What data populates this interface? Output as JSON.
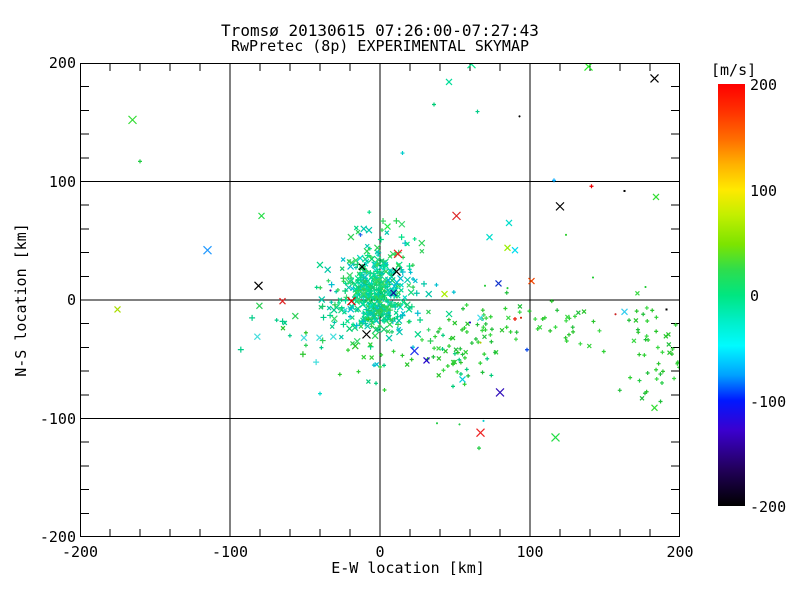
{
  "chart_data": {
    "type": "scatter",
    "title": "Tromsø 20130615 07:26:00-07:27:43",
    "subtitle": "RwPretec (8p) EXPERIMENTAL SKYMAP",
    "xlabel": "E-W location [km]",
    "ylabel": "N-S location [km]",
    "xlim": [
      -200,
      200
    ],
    "ylim": [
      -200,
      200
    ],
    "xticks": [
      -200,
      -100,
      0,
      100,
      200
    ],
    "yticks": [
      -200,
      -100,
      0,
      100,
      200
    ],
    "minor_tick_km": 20,
    "grid_km": 100,
    "grid_on": true,
    "axis_color": "#000000",
    "background_color": "#ffffff",
    "colorbar": {
      "label": "[m/s]",
      "max": 200,
      "min": -200,
      "ticks": [
        200,
        100,
        0,
        -100,
        -200
      ],
      "position": "right",
      "gradient": [
        {
          "pos": 0.0,
          "color": "#ff0000"
        },
        {
          "pos": 0.06,
          "color": "#ff2d00"
        },
        {
          "pos": 0.13,
          "color": "#ff6d00"
        },
        {
          "pos": 0.19,
          "color": "#ffb100"
        },
        {
          "pos": 0.25,
          "color": "#ffe900"
        },
        {
          "pos": 0.31,
          "color": "#c3ef00"
        },
        {
          "pos": 0.38,
          "color": "#7ce400"
        },
        {
          "pos": 0.44,
          "color": "#2edd4d"
        },
        {
          "pos": 0.5,
          "color": "#00e680"
        },
        {
          "pos": 0.56,
          "color": "#00eec6"
        },
        {
          "pos": 0.62,
          "color": "#00fbff"
        },
        {
          "pos": 0.69,
          "color": "#00a1ff"
        },
        {
          "pos": 0.75,
          "color": "#0018ff"
        },
        {
          "pos": 0.82,
          "color": "#3b00cf"
        },
        {
          "pos": 0.91,
          "color": "#23005e"
        },
        {
          "pos": 1.0,
          "color": "#000000"
        }
      ]
    },
    "points_format": [
      "x_km",
      "y_km",
      "color",
      "marker",
      "half_size_px"
    ],
    "points": [
      [
        -165,
        152,
        "#33dd33",
        "x",
        4
      ],
      [
        -160,
        117,
        "#22cc44",
        "+",
        2
      ],
      [
        -79,
        71,
        "#22dd44",
        "x",
        3
      ],
      [
        61,
        199,
        "#00e688",
        "x",
        4
      ],
      [
        46,
        184,
        "#00dd99",
        "x",
        3
      ],
      [
        36,
        165,
        "#00cc77",
        "+",
        2
      ],
      [
        65,
        159,
        "#00cc88",
        "+",
        2
      ],
      [
        15,
        124,
        "#00cccc",
        "+",
        2
      ],
      [
        51,
        71,
        "#dd2222",
        "x",
        4
      ],
      [
        139,
        197,
        "#22ee22",
        "x",
        4
      ],
      [
        183,
        187,
        "#000000",
        "x",
        4
      ],
      [
        93,
        155,
        "#000000",
        "+",
        1
      ],
      [
        116,
        101,
        "#00aaff",
        "+",
        2
      ],
      [
        141,
        96,
        "#ee0000",
        "+",
        2
      ],
      [
        163,
        92,
        "#000000",
        ".",
        1
      ],
      [
        184,
        87,
        "#33dd33",
        "x",
        3
      ],
      [
        120,
        79,
        "#000000",
        "x",
        4
      ],
      [
        -115,
        42,
        "#2299ff",
        "x",
        4
      ],
      [
        -81,
        12,
        "#000000",
        "x",
        4
      ],
      [
        -175,
        -8,
        "#aadd00",
        "x",
        3
      ],
      [
        86,
        65,
        "#00ddcc",
        "x",
        3
      ],
      [
        73,
        53,
        "#00ddcc",
        "x",
        3
      ],
      [
        85,
        44,
        "#99ee00",
        "x",
        3
      ],
      [
        90,
        42,
        "#00ddee",
        "x",
        3
      ],
      [
        124,
        55,
        "#22cc22",
        "+",
        1
      ],
      [
        79,
        14,
        "#1133cc",
        "x",
        3
      ],
      [
        101,
        16,
        "#ee4400",
        "x",
        3
      ],
      [
        142,
        19,
        "#22cc33",
        "+",
        1
      ],
      [
        70,
        12,
        "#22cc33",
        "+",
        1
      ],
      [
        177,
        11,
        "#22cc33",
        "+",
        1
      ],
      [
        85,
        10,
        "#22cc33",
        "+",
        1
      ],
      [
        43,
        5,
        "#aaee00",
        "x",
        3
      ],
      [
        67,
        -15,
        "#44ddee",
        "x",
        3
      ],
      [
        60,
        -19,
        "#2200cc",
        "+",
        1
      ],
      [
        90,
        -16,
        "#ee1100",
        "+",
        2
      ],
      [
        94,
        -15,
        "#cc2200",
        "+",
        1
      ],
      [
        157,
        -12,
        "#cc2222",
        "+",
        1
      ],
      [
        163,
        -10,
        "#33ccee",
        "x",
        3
      ],
      [
        191,
        -8,
        "#000000",
        ".",
        1
      ],
      [
        31,
        -51,
        "#2200cc",
        "x",
        3
      ],
      [
        55,
        -67,
        "#00ccdd",
        "x",
        3
      ],
      [
        98,
        -42,
        "#0044ee",
        "+",
        2
      ],
      [
        67,
        -36,
        "#aacc00",
        "+",
        1
      ],
      [
        80,
        -78,
        "#3311bb",
        "x",
        4
      ],
      [
        67,
        -112,
        "#ee2222",
        "x",
        4
      ],
      [
        69,
        -102,
        "#00cccc",
        "+",
        1
      ],
      [
        66,
        -125,
        "#22cc44",
        "+",
        2
      ],
      [
        117,
        -116,
        "#22dd44",
        "x",
        4
      ],
      [
        38,
        -104,
        "#22cc44",
        "+",
        1
      ],
      [
        53,
        -105,
        "#22cc44",
        "+",
        1
      ],
      [
        183,
        -91,
        "#33dd33",
        "x",
        3
      ],
      [
        173,
        -68,
        "#22cc44",
        "+",
        2
      ],
      [
        188,
        -70,
        "#22cc44",
        "+",
        2
      ],
      [
        -40,
        -79,
        "#00ddcc",
        "+",
        2
      ],
      [
        -19,
        -1,
        "#dd0000",
        "x",
        4
      ],
      [
        -65,
        -1,
        "#dd2222",
        "x",
        3
      ],
      [
        -9,
        -29,
        "#000000",
        "x",
        4
      ],
      [
        23,
        -43,
        "#2233ee",
        "x",
        4
      ],
      [
        12,
        39,
        "#ee2222",
        "x",
        4
      ],
      [
        11,
        24,
        "#000000",
        "x",
        4
      ],
      [
        5,
        62,
        "#22ee44",
        "x",
        3
      ],
      [
        -13,
        55,
        "#2266ee",
        "+",
        2
      ],
      [
        -33,
        8,
        "#5500aa",
        "+",
        1
      ],
      [
        9,
        6,
        "#111199",
        "x",
        3
      ],
      [
        -12,
        28,
        "#000000",
        "x",
        3
      ]
    ],
    "clusters": [
      {
        "name": "dense-core",
        "count": 300,
        "cx": -3,
        "cy": 6,
        "sx": 9,
        "sy": 16,
        "x_marker_fraction": 0.55,
        "sizes": [
          2,
          3
        ],
        "palette": [
          "#00e187",
          "#00da9b",
          "#00cf72",
          "#16d77c",
          "#00c9ae",
          "#2bd456",
          "#00dbc3"
        ]
      },
      {
        "name": "halo",
        "count": 140,
        "cx": -6,
        "cy": 2,
        "sx": 21,
        "sy": 21,
        "x_marker_fraction": 0.5,
        "sizes": [
          2,
          3
        ],
        "palette": [
          "#00d587",
          "#2fcf57",
          "#00c7a8",
          "#37d96a",
          "#00bfd0",
          "#19c96e"
        ]
      },
      {
        "name": "upper-plume",
        "count": 26,
        "cx": 2,
        "cy": 45,
        "sx": 11,
        "sy": 12,
        "x_marker_fraction": 0.5,
        "sizes": [
          2,
          3
        ],
        "palette": [
          "#00e187",
          "#2bd456",
          "#00c9ae",
          "#37d96a"
        ]
      },
      {
        "name": "southwest-tail",
        "count": 26,
        "cx": -48,
        "cy": -26,
        "sx": 20,
        "sy": 13,
        "x_marker_fraction": 0.45,
        "sizes": [
          2,
          3
        ],
        "palette": [
          "#2fcf57",
          "#00cc88",
          "#44dddd",
          "#28c52b"
        ]
      },
      {
        "name": "south-tail",
        "count": 18,
        "cx": 2,
        "cy": -52,
        "sx": 12,
        "sy": 12,
        "x_marker_fraction": 0.5,
        "sizes": [
          2
        ],
        "palette": [
          "#2fd134",
          "#28c52b",
          "#00cc7a"
        ]
      },
      {
        "name": "east-band-west-blob",
        "count": 55,
        "cx": 52,
        "cy": -46,
        "sx": 13,
        "sy": 13,
        "x_marker_fraction": 0.3,
        "sizes": [
          2
        ],
        "palette": [
          "#2fd134",
          "#28c52b",
          "#3bd944",
          "#20bf3a",
          "#00cc7a"
        ]
      },
      {
        "name": "east-band-mid",
        "count": 48,
        "cx": 95,
        "cy": -17,
        "sx": 27,
        "sy": 9,
        "x_marker_fraction": 0.25,
        "sizes": [
          2
        ],
        "palette": [
          "#2fd134",
          "#28c52b",
          "#3bd944",
          "#20bf3a"
        ]
      },
      {
        "name": "east-band-right",
        "count": 50,
        "cx": 181,
        "cy": -38,
        "sx": 13,
        "sy": 25,
        "x_marker_fraction": 0.25,
        "sizes": [
          2
        ],
        "palette": [
          "#2fd134",
          "#28c52b",
          "#3bd944",
          "#20bf3a"
        ]
      }
    ],
    "seed": 20130615
  }
}
